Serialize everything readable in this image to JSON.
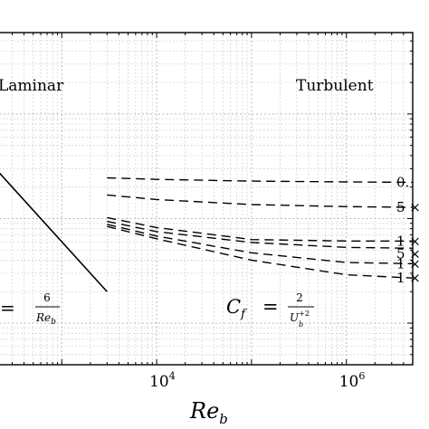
{
  "chart_data": {
    "type": "line",
    "xscale": "log",
    "yscale": "log",
    "xlabel": "Re",
    "xlabel_sub": "b",
    "xlim": [
      200,
      5000000
    ],
    "ylim": [
      0.0004,
      0.6
    ],
    "xticks": [
      {
        "value": 10000,
        "base": "10",
        "exp": "4"
      },
      {
        "value": 1000000,
        "base": "10",
        "exp": "6"
      }
    ],
    "regime_labels": {
      "laminar": "Laminar",
      "turbulent": "Turbulent"
    },
    "laminar_formula": {
      "lhs": "=",
      "num": "6",
      "den": "Re",
      "den_sub": "b"
    },
    "turbulent_formula": {
      "lhs": "C",
      "lhs_sub": "f",
      "eq": "=",
      "num": "2",
      "den": "U",
      "den_sup": "+2",
      "den_sub": "b"
    },
    "laminar_series": {
      "name": "laminar",
      "style": "solid",
      "x": [
        100,
        3000
      ],
      "y": [
        0.06,
        0.002
      ]
    },
    "turbulent_series": [
      {
        "label": "0.",
        "x": [
          3000,
          10000,
          100000,
          1000000,
          5000000
        ],
        "y": [
          0.0245,
          0.0237,
          0.0228,
          0.0224,
          0.0222
        ]
      },
      {
        "label": "5 ×",
        "x": [
          3000,
          10000,
          100000,
          1000000,
          5000000
        ],
        "y": [
          0.0168,
          0.0152,
          0.0136,
          0.013,
          0.0128
        ]
      },
      {
        "label": "1 ×",
        "x": [
          3000,
          10000,
          100000,
          1000000,
          5000000
        ],
        "y": [
          0.0102,
          0.0082,
          0.0063,
          0.0061,
          0.0061
        ]
      },
      {
        "label": "5 ×",
        "x": [
          3000,
          10000,
          100000,
          1000000,
          5000000
        ],
        "y": [
          0.0094,
          0.0075,
          0.0059,
          0.0053,
          0.0052
        ]
      },
      {
        "label": "1 ×",
        "x": [
          3000,
          10000,
          100000,
          1000000,
          5000000
        ],
        "y": [
          0.0088,
          0.0068,
          0.0047,
          0.0038,
          0.0037
        ]
      },
      {
        "label": "1 ×",
        "x": [
          3000,
          10000,
          100000,
          1000000,
          5000000
        ],
        "y": [
          0.0084,
          0.0064,
          0.004,
          0.0029,
          0.0027
        ]
      }
    ],
    "grid": true
  }
}
